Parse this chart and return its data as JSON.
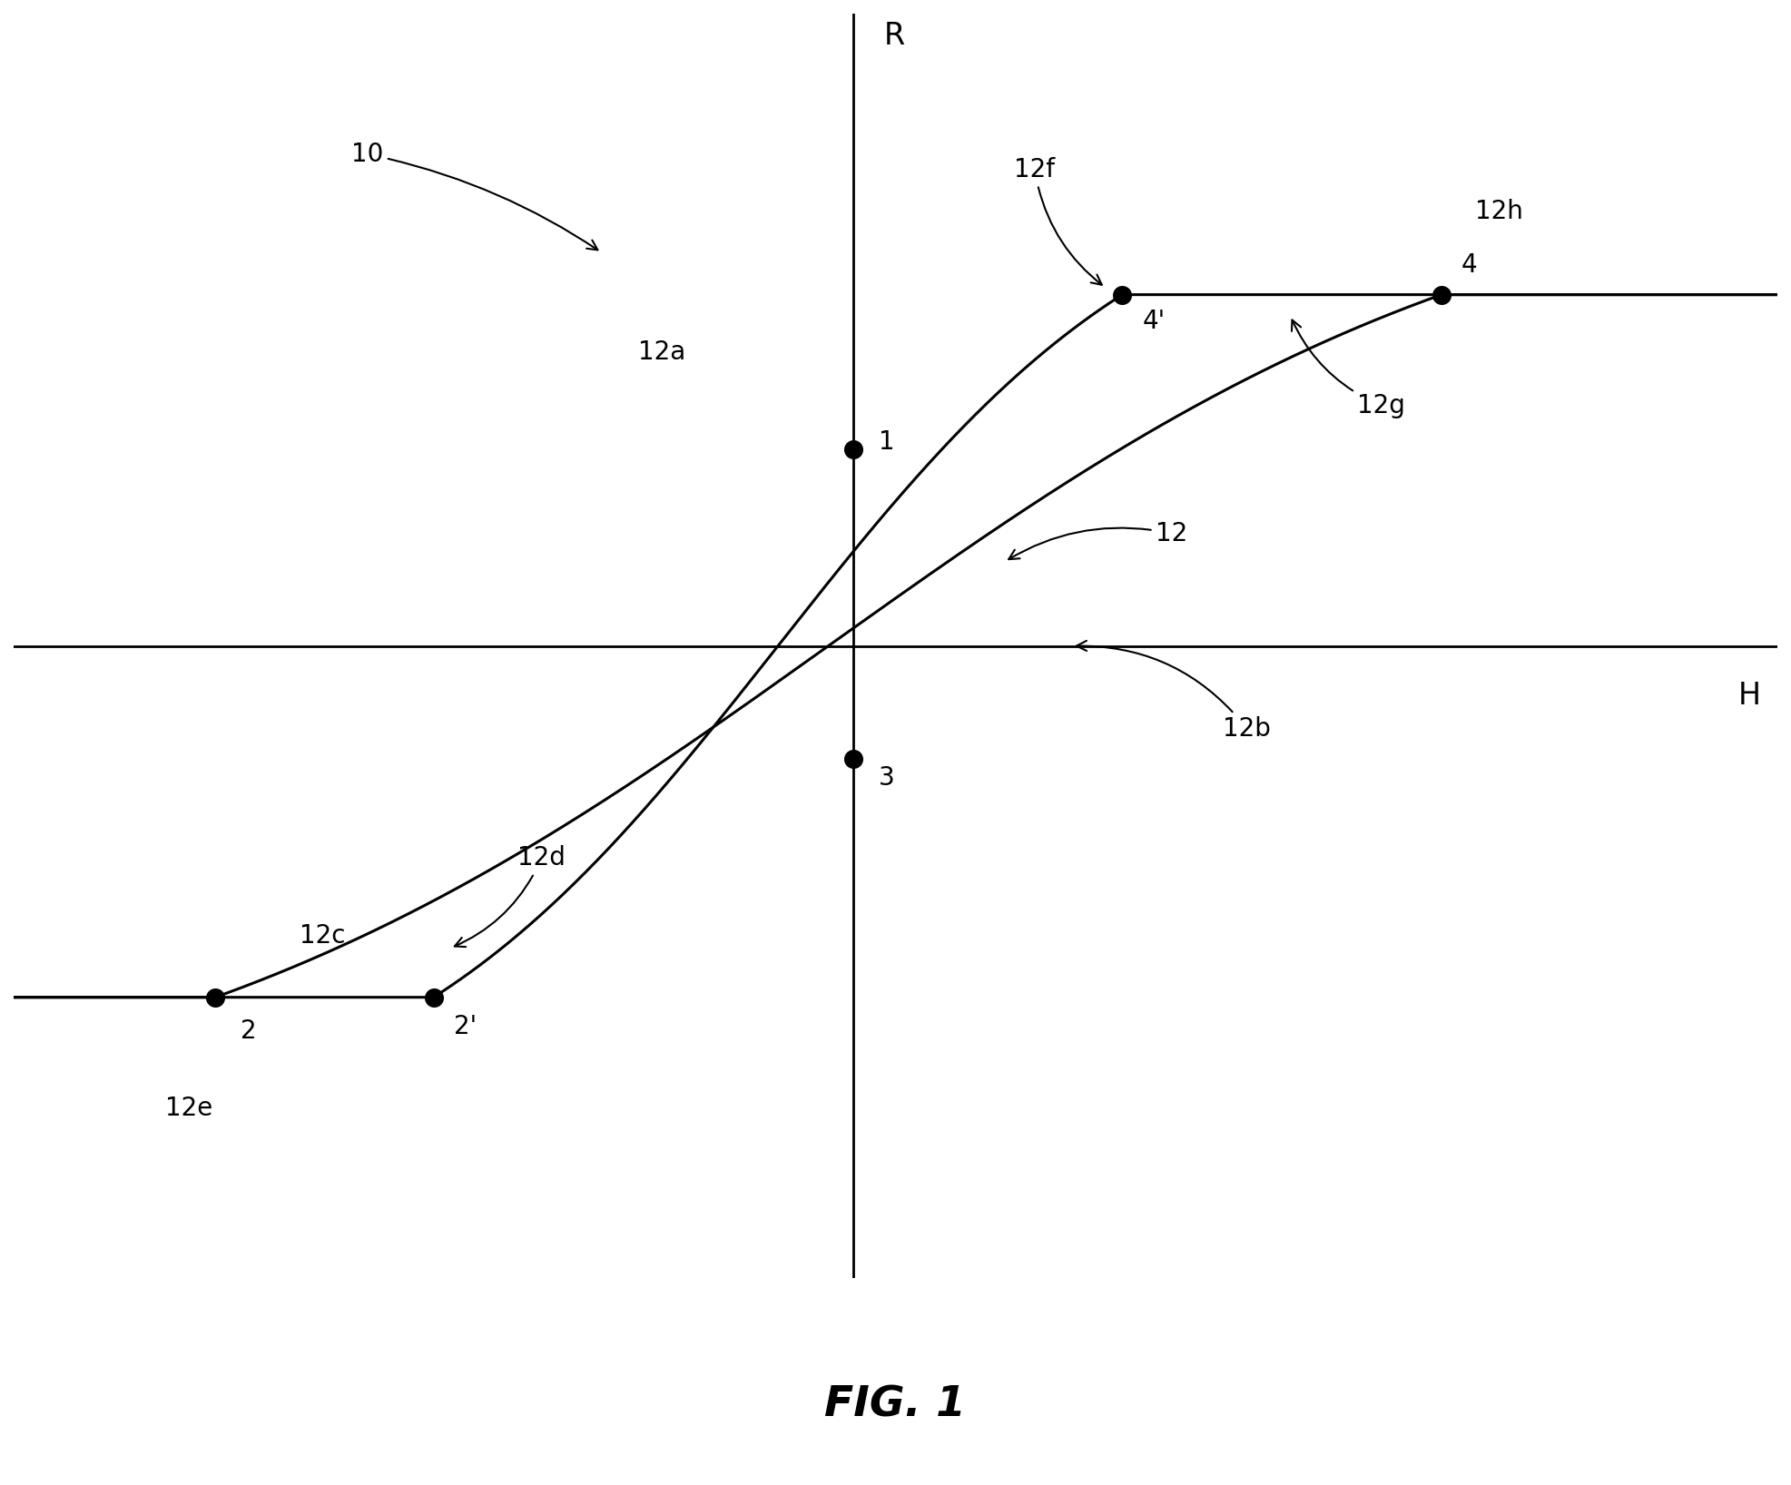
{
  "title": "FIG. 1",
  "xlabel": "H",
  "ylabel": "R",
  "label_10": "10",
  "label_12": "12",
  "label_12a": "12a",
  "label_12b": "12b",
  "label_12c": "12c",
  "label_12d": "12d",
  "label_12e": "12e",
  "label_12f": "12f",
  "label_12g": "12g",
  "label_12h": "12h",
  "pt1_label": "1",
  "pt2_label": "2",
  "pt2prime_label": "2'",
  "pt3_label": "3",
  "pt4_label": "4",
  "pt4prime_label": "4'",
  "xlim": [
    -5.0,
    5.5
  ],
  "ylim": [
    -4.5,
    4.5
  ],
  "background_color": "#ffffff",
  "line_color": "#000000",
  "dot_color": "#000000",
  "axis_color": "#000000",
  "fontsize_labels": 20,
  "fontsize_axis": 24,
  "fontsize_title": 34,
  "fontsize_numbers": 20,
  "dot_size": 200,
  "y_sat_high": 2.5,
  "y_sat_low": -2.5,
  "x_pt2": -3.8,
  "x_pt2p": -2.5,
  "x_pt4p": 1.6,
  "x_pt4": 3.5,
  "y_pt1": 1.4,
  "y_pt3": -0.8
}
